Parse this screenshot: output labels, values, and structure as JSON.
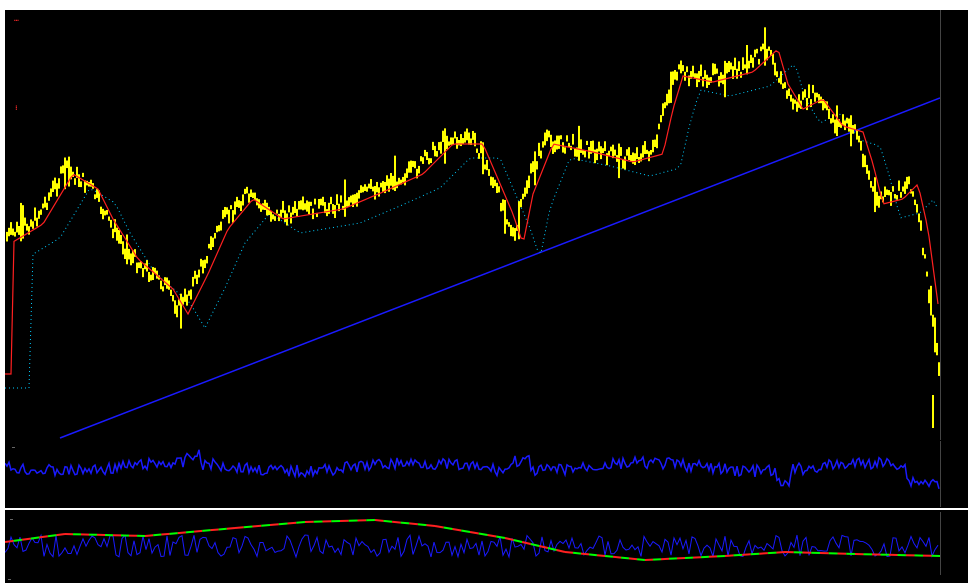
{
  "chart": {
    "symbol_line": "…",
    "indicator_name": "…",
    "vertical_label": "…",
    "rsi_label": "…",
    "lower_label": "…",
    "bottom_label": "…"
  },
  "colors": {
    "price": "#ffff00",
    "ma_fast": "#ff2020",
    "ma_slow": "#00ccff",
    "trendline": "#1a1aff",
    "rsi": "#1a1aff",
    "lower_green": "#00ff00",
    "lower_red": "#ff2020"
  }
}
